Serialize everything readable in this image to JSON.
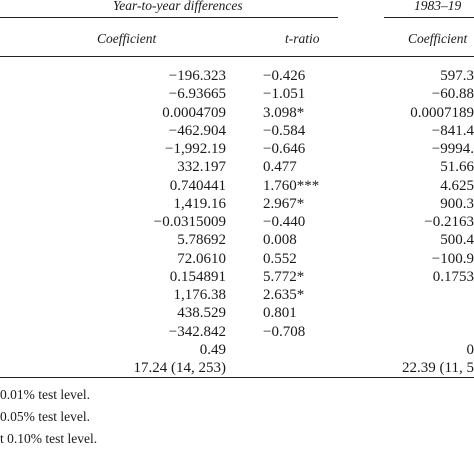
{
  "header": {
    "group1_title": "Year-to-year differences",
    "group2_title": "1983–19",
    "col_coefficient": "Coefficient",
    "col_tratio": "t-ratio",
    "col_coefficient2": "Coefficient"
  },
  "rows": [
    {
      "coef": "−196.323",
      "t": "−0.426",
      "coef2": "597.3"
    },
    {
      "coef": "−6.93665",
      "t": "−1.051",
      "coef2": "−60.88"
    },
    {
      "coef": "0.0004709",
      "t": "3.098*",
      "coef2": "0.0007189"
    },
    {
      "coef": "−462.904",
      "t": "−0.584",
      "coef2": "−841.4"
    },
    {
      "coef": "−1,992.19",
      "t": "−0.646",
      "coef2": "−9994."
    },
    {
      "coef": "332.197",
      "t": "0.477",
      "coef2": "51.66"
    },
    {
      "coef": "0.740441",
      "t": "1.760***",
      "coef2": "4.625"
    },
    {
      "coef": "1,419.16",
      "t": "2.967*",
      "coef2": "900.3"
    },
    {
      "coef": "−0.0315009",
      "t": "−0.440",
      "coef2": "−0.2163"
    },
    {
      "coef": "5.78692",
      "t": "0.008",
      "coef2": "500.4"
    },
    {
      "coef": "72.0610",
      "t": "0.552",
      "coef2": "−100.9"
    },
    {
      "coef": "0.154891",
      "t": "5.772*",
      "coef2": "0.1753"
    },
    {
      "coef": "1,176.38",
      "t": "2.635*",
      "coef2": ""
    },
    {
      "coef": "438.529",
      "t": "0.801",
      "coef2": ""
    },
    {
      "coef": "−342.842",
      "t": "−0.708",
      "coef2": ""
    },
    {
      "coef": "0.49",
      "t": "",
      "coef2": "0"
    },
    {
      "coef": "17.24 (14, 253)",
      "t": "",
      "coef2": "22.39 (11, 5"
    }
  ],
  "footnotes": [
    "0.01% test level.",
    "0.05% test level.",
    "t 0.10% test level."
  ]
}
